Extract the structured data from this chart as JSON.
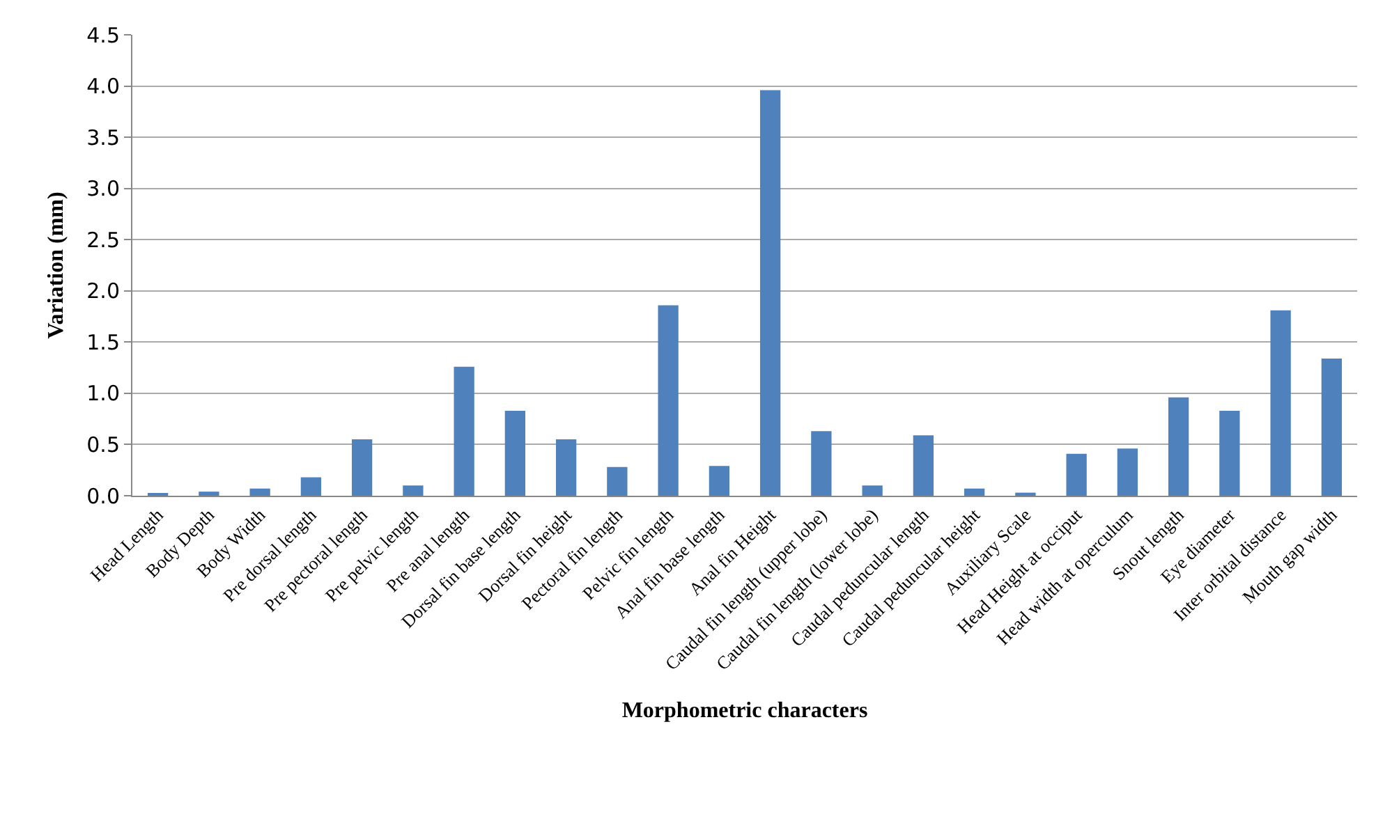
{
  "chart_data": {
    "type": "bar",
    "xlabel": "Morphometric characters",
    "ylabel": "Variation (mm)",
    "categories": [
      "Head Length",
      "Body Depth",
      "Body Width",
      "Pre dorsal length",
      "Pre pectoral length",
      "Pre pelvic length",
      "Pre anal length",
      "Dorsal fin base length",
      "Dorsal fin height",
      "Pectoral fin length",
      "Pelvic fin length",
      "Anal fin base length",
      "Anal fin Height",
      "Caudal fin length (upper lobe)",
      "Caudal fin length (lower lobe)",
      "Caudal peduncular length",
      "Caudal peduncular height",
      "Auxiliary Scale",
      "Head Height at occiput",
      "Head width at operculum",
      "Snout length",
      "Eye diameter",
      "Inter orbital distance",
      "Mouth gap width"
    ],
    "values": [
      0.02,
      0.04,
      0.07,
      0.18,
      0.55,
      0.1,
      1.26,
      0.83,
      0.55,
      0.28,
      1.86,
      0.29,
      3.96,
      0.63,
      0.1,
      0.59,
      0.07,
      0.03,
      0.41,
      0.46,
      0.96,
      0.83,
      1.81,
      1.34
    ],
    "color": "#4f81bd",
    "ylim": [
      0,
      4.5
    ],
    "yticks": [
      {
        "value": 0,
        "label": "0.0"
      },
      {
        "value": 0.5,
        "label": "0.5"
      },
      {
        "value": 1,
        "label": "1.0"
      },
      {
        "value": 1.5,
        "label": "1.5"
      },
      {
        "value": 2,
        "label": "2.0"
      },
      {
        "value": 2.5,
        "label": "2.5"
      },
      {
        "value": 3,
        "label": "3.0"
      },
      {
        "value": 3.5,
        "label": "3.5"
      },
      {
        "value": 4,
        "label": "4.0"
      },
      {
        "value": 4.5,
        "label": "4.5"
      }
    ],
    "grid": "y"
  }
}
